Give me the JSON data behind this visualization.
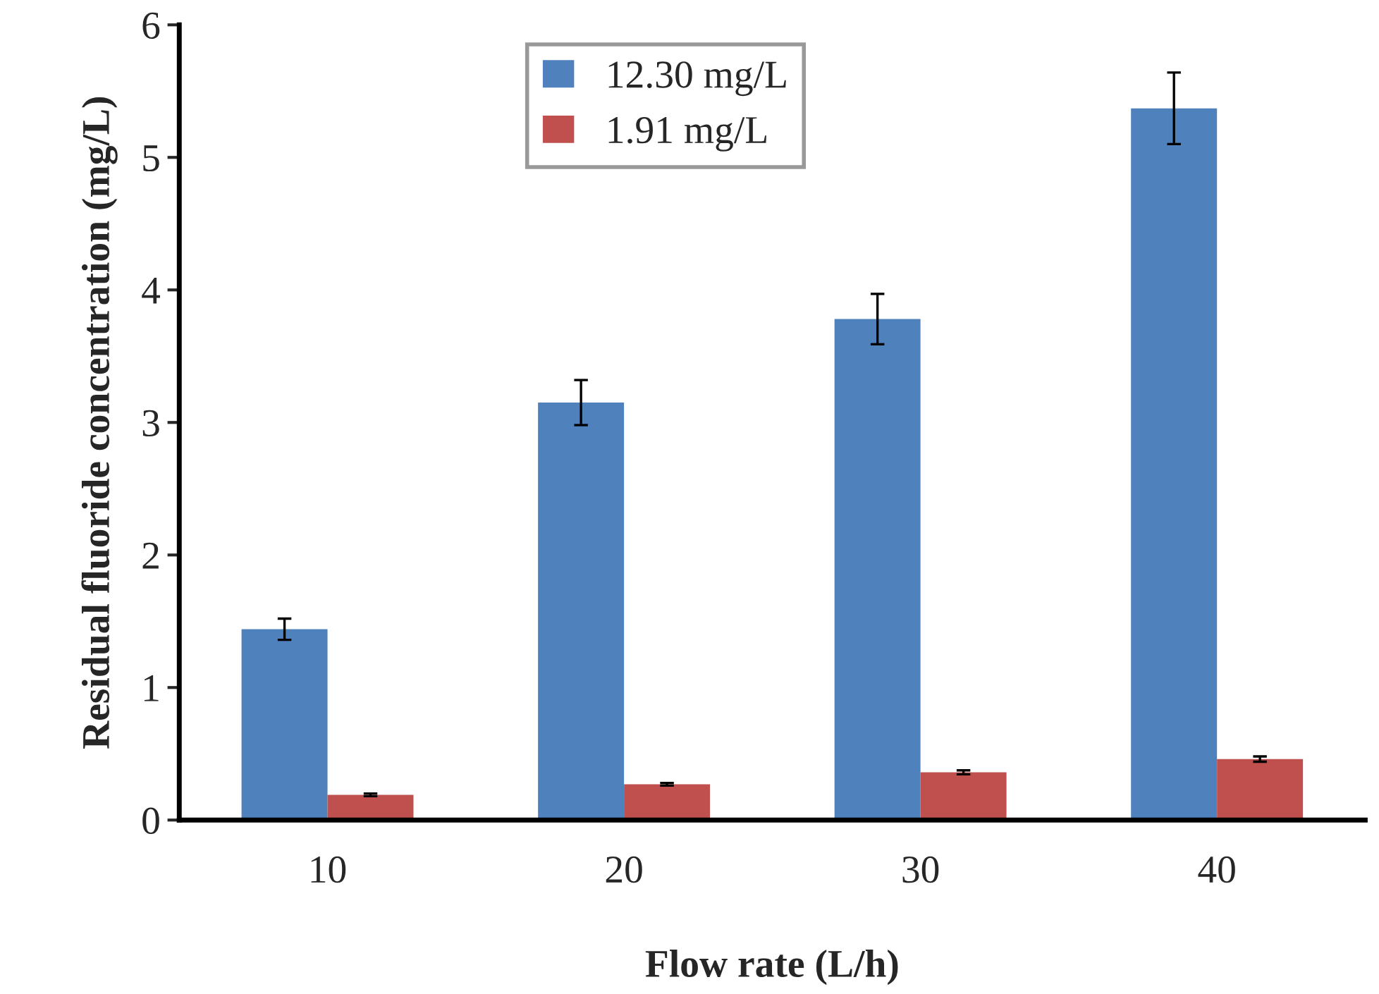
{
  "chart_data": {
    "type": "bar",
    "xlabel": "Flow rate (L/h)",
    "ylabel": "Residual fluoride concentration (mg/L)",
    "categories": [
      "10",
      "20",
      "30",
      "40"
    ],
    "series": [
      {
        "name": "12.30 mg/L",
        "color": "#4f81bd",
        "values": [
          1.44,
          3.15,
          3.78,
          5.37
        ],
        "errors": [
          0.08,
          0.17,
          0.19,
          0.27
        ]
      },
      {
        "name": "1.91 mg/L",
        "color": "#c0504d",
        "values": [
          0.19,
          0.27,
          0.36,
          0.46
        ],
        "errors": [
          0.01,
          0.01,
          0.015,
          0.02
        ]
      }
    ],
    "ylim": [
      0,
      6
    ],
    "yticks": [
      0,
      1,
      2,
      3,
      4,
      5,
      6
    ],
    "grid": false,
    "legend": "top"
  }
}
